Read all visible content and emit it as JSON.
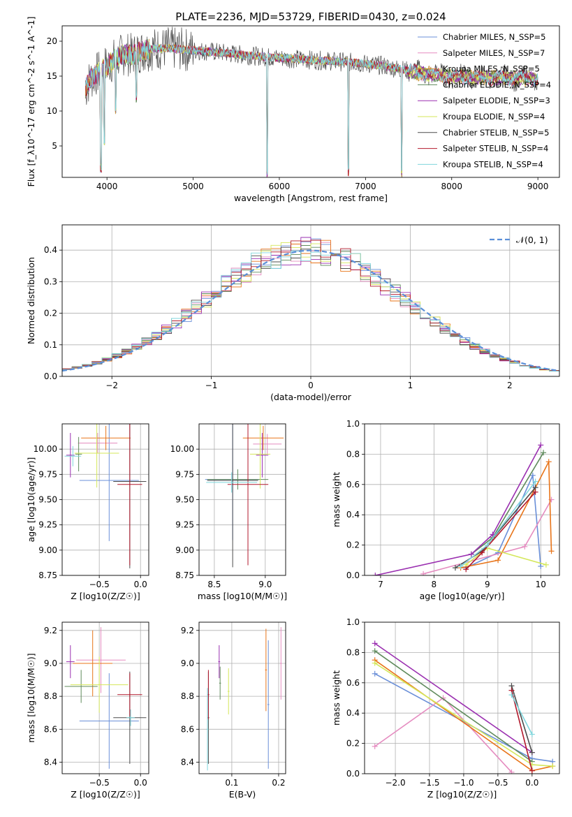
{
  "figure_title": "PLATE=2236, MJD=53729, FIBERID=0430, z=0.024",
  "colors": [
    "#6a8fd8",
    "#e58cc0",
    "#c8922e",
    "#5f8a5b",
    "#9a2fb0",
    "#d4e75a",
    "#4c4c4c",
    "#b2182b",
    "#7fd6dc",
    "#e8751a"
  ],
  "chart_data": [
    {
      "id": "spectrum",
      "type": "line",
      "xlabel": "wavelength [Angstrom, rest frame]",
      "ylabel": "Flux [f_λ10^-17 erg cm^-2 s^-1 A^-1]",
      "xlim": [
        3480,
        9250
      ],
      "ylim": [
        0.5,
        22.2
      ],
      "xticks": [
        4000,
        5000,
        6000,
        7000,
        8000,
        9000
      ],
      "yticks": [
        5,
        10,
        15,
        20
      ],
      "legend_position": "upper-right",
      "series": [
        {
          "name": "Chabrier MILES, N_SSP=5",
          "color": "#6a8fd8"
        },
        {
          "name": "Salpeter MILES, N_SSP=7",
          "color": "#e58cc0"
        },
        {
          "name": "Kroupa MILES, N_SSP=5",
          "color": "#c8922e"
        },
        {
          "name": "Chabrier ELODIE, N_SSP=4",
          "color": "#5f8a5b"
        },
        {
          "name": "Salpeter ELODIE, N_SSP=3",
          "color": "#9a2fb0"
        },
        {
          "name": "Kroupa ELODIE, N_SSP=4",
          "color": "#d4e75a"
        },
        {
          "name": "Chabrier STELIB, N_SSP=5",
          "color": "#4c4c4c"
        },
        {
          "name": "Salpeter STELIB, N_SSP=4",
          "color": "#b2182b"
        },
        {
          "name": "Kroupa STELIB, N_SSP=4",
          "color": "#7fd6dc"
        }
      ],
      "continuum": {
        "x": [
          3750,
          3800,
          3900,
          4000,
          4100,
          4200,
          4300,
          4400,
          4500,
          4700,
          5000,
          5300,
          5600,
          6000,
          6400,
          6800,
          7200,
          7600,
          8000,
          8400,
          8800,
          9000
        ],
        "y": [
          13.0,
          14.5,
          15.5,
          16.5,
          17.5,
          18.2,
          18.0,
          18.6,
          18.9,
          19.0,
          18.7,
          18.4,
          18.0,
          17.6,
          17.3,
          17.0,
          16.5,
          15.5,
          14.9,
          14.8,
          14.7,
          14.6
        ]
      },
      "dips": [
        {
          "x": 3930,
          "y": 1.0
        },
        {
          "x": 3968,
          "y": 5.0
        },
        {
          "x": 4101,
          "y": 9.5
        },
        {
          "x": 4340,
          "y": 11.0
        },
        {
          "x": 5860,
          "y": 0.5
        },
        {
          "x": 6800,
          "y": 0.5
        },
        {
          "x": 7420,
          "y": 0.5
        }
      ]
    },
    {
      "id": "residual-histogram",
      "type": "line",
      "xlabel": "(data-model)/error",
      "ylabel": "Normed distribution",
      "xlim": [
        -2.5,
        2.5
      ],
      "ylim": [
        0,
        0.48
      ],
      "xticks": [
        -2,
        -1,
        0,
        1,
        2
      ],
      "yticks": [
        0.0,
        0.1,
        0.2,
        0.3,
        0.4
      ],
      "legend": "𝒩(0, 1)",
      "legend_position": "upper-right",
      "grid": true,
      "bin_width": 0.1,
      "reference_curve": {
        "name": "N(0,1)",
        "mean": 0,
        "sigma": 1,
        "color": "#5b8fd8"
      }
    },
    {
      "id": "age-vs-Z",
      "type": "scatter",
      "xlabel": "Z [log10(Z/Z☉)]",
      "ylabel": "age  [log10(age/yr)]",
      "xlim": [
        -0.95,
        0.1
      ],
      "ylim": [
        8.75,
        10.25
      ],
      "xticks": [
        -0.5,
        0.0
      ],
      "yticks": [
        8.75,
        9.0,
        9.25,
        9.5,
        9.75,
        10.0
      ],
      "grid": true
    },
    {
      "id": "age-vs-mass",
      "type": "scatter",
      "xlabel": "mass [log10(M/M☉)]",
      "xlim": [
        8.35,
        9.2
      ],
      "ylim": [
        8.75,
        10.25
      ],
      "xticks": [
        8.5,
        9.0
      ],
      "yticks": [
        8.75,
        9.0,
        9.25,
        9.5,
        9.75,
        10.0
      ],
      "grid": true
    },
    {
      "id": "massweight-vs-age",
      "type": "line",
      "xlabel": "age  [log10(age/yr)]",
      "ylabel": "mass weight",
      "xlim": [
        6.7,
        10.35
      ],
      "ylim": [
        0,
        1.0
      ],
      "xticks": [
        7,
        8,
        9,
        10
      ],
      "yticks": [
        0.0,
        0.2,
        0.4,
        0.6,
        0.8,
        1.0
      ],
      "grid": true,
      "series": [
        {
          "color": "#6a8fd8",
          "x": [
            8.6,
            9.2,
            9.85,
            10.0
          ],
          "y": [
            0.05,
            0.15,
            0.66,
            0.06
          ]
        },
        {
          "color": "#e58cc0",
          "x": [
            7.8,
            9.7,
            10.2
          ],
          "y": [
            0.01,
            0.19,
            0.5
          ]
        },
        {
          "color": "#e8751a",
          "x": [
            8.5,
            9.2,
            10.15,
            10.2
          ],
          "y": [
            0.05,
            0.1,
            0.75,
            0.16
          ]
        },
        {
          "color": "#5f8a5b",
          "x": [
            8.7,
            9.1,
            10.05
          ],
          "y": [
            0.14,
            0.25,
            0.81
          ]
        },
        {
          "color": "#9a2fb0",
          "x": [
            6.9,
            8.7,
            9.1,
            10.0
          ],
          "y": [
            0.0,
            0.14,
            0.27,
            0.86
          ]
        },
        {
          "color": "#d4e75a",
          "x": [
            8.6,
            9.0,
            10.1
          ],
          "y": [
            0.07,
            0.18,
            0.07
          ]
        },
        {
          "color": "#4c4c4c",
          "x": [
            8.4,
            8.9,
            9.9
          ],
          "y": [
            0.05,
            0.16,
            0.58
          ]
        },
        {
          "color": "#b2182b",
          "x": [
            8.6,
            8.9,
            9.9
          ],
          "y": [
            0.04,
            0.15,
            0.55
          ]
        },
        {
          "color": "#7fd6dc",
          "x": [
            8.5,
            9.0,
            9.9
          ],
          "y": [
            0.06,
            0.2,
            0.62
          ]
        }
      ]
    },
    {
      "id": "mass-vs-Z",
      "type": "scatter",
      "xlabel": "Z [log10(Z/Z☉)]",
      "ylabel": "mass [log10(M/M☉)]",
      "xlim": [
        -0.95,
        0.1
      ],
      "ylim": [
        8.33,
        9.25
      ],
      "xticks": [
        -0.5,
        0.0
      ],
      "yticks": [
        8.4,
        8.6,
        8.8,
        9.0,
        9.2
      ],
      "grid": true
    },
    {
      "id": "mass-vs-EBV",
      "type": "scatter",
      "xlabel": "E(B-V)",
      "xlim": [
        0.03,
        0.215
      ],
      "ylim": [
        8.33,
        9.25
      ],
      "xticks": [
        0.1,
        0.2
      ],
      "yticks": [
        8.4,
        8.6,
        8.8,
        9.0,
        9.2
      ],
      "grid": true
    },
    {
      "id": "massweight-vs-Z",
      "type": "line",
      "xlabel": "Z [log10(Z/Z☉)]",
      "ylabel": "mass weight",
      "xlim": [
        -2.45,
        0.4
      ],
      "ylim": [
        0,
        1.0
      ],
      "xticks": [
        -2.0,
        -1.5,
        -1.0,
        -0.5,
        0.0
      ],
      "yticks": [
        0.0,
        0.2,
        0.4,
        0.6,
        0.8,
        1.0
      ],
      "grid": true,
      "series": [
        {
          "color": "#6a8fd8",
          "x": [
            -2.3,
            0.0,
            0.3
          ],
          "y": [
            0.66,
            0.1,
            0.08
          ]
        },
        {
          "color": "#e58cc0",
          "x": [
            -2.3,
            -1.3,
            -0.3
          ],
          "y": [
            0.18,
            0.5,
            0.01
          ]
        },
        {
          "color": "#e8751a",
          "x": [
            -2.3,
            0.0,
            0.3
          ],
          "y": [
            0.75,
            0.02,
            0.05
          ]
        },
        {
          "color": "#5f8a5b",
          "x": [
            -2.3,
            0.0
          ],
          "y": [
            0.81,
            0.08
          ]
        },
        {
          "color": "#9a2fb0",
          "x": [
            -2.3,
            0.0
          ],
          "y": [
            0.86,
            0.14
          ]
        },
        {
          "color": "#d4e75a",
          "x": [
            -2.3,
            0.0,
            0.3
          ],
          "y": [
            0.73,
            0.06,
            0.05
          ]
        },
        {
          "color": "#4c4c4c",
          "x": [
            -0.3,
            0.0
          ],
          "y": [
            0.58,
            0.14
          ]
        },
        {
          "color": "#b2182b",
          "x": [
            -0.3,
            0.0
          ],
          "y": [
            0.55,
            0.02
          ]
        },
        {
          "color": "#7fd6dc",
          "x": [
            -0.3,
            0.0
          ],
          "y": [
            0.52,
            0.26
          ]
        }
      ]
    }
  ],
  "tick_labels": {
    "minus_sign": "−"
  }
}
